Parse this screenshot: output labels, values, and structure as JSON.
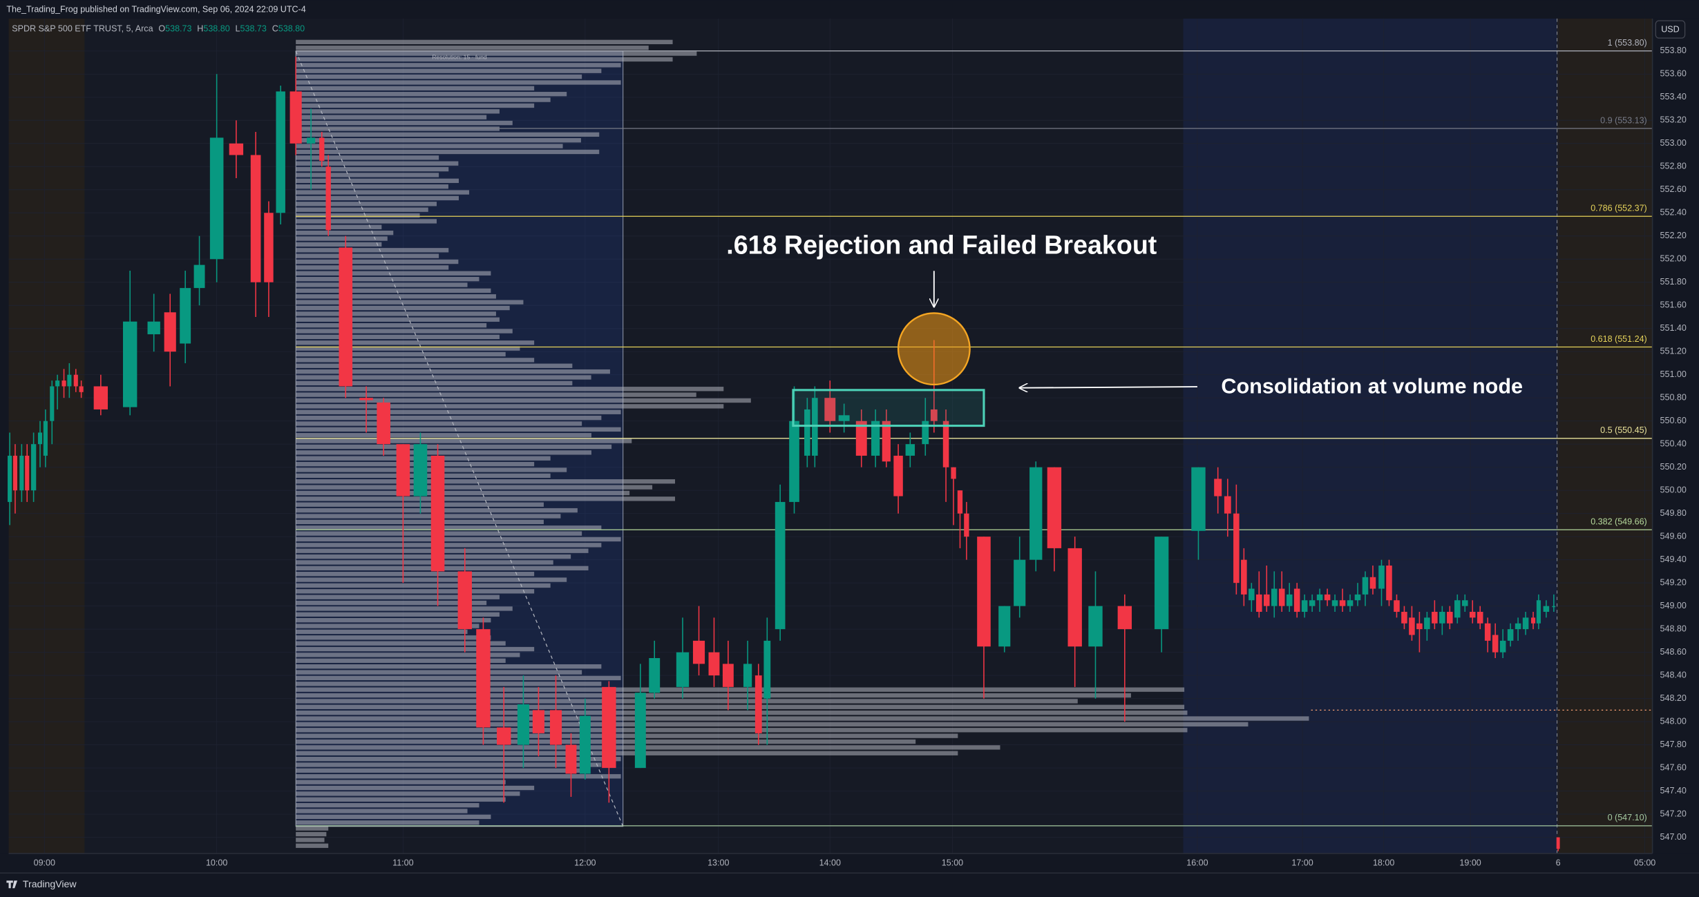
{
  "header": {
    "publisher": "The_Trading_Frog published on TradingView.com, Sep 06, 2024 22:09 UTC-4",
    "symbol": "SPDR S&P 500 ETF TRUST, 5, Arca",
    "ohlc": [
      {
        "label": "O",
        "value": "538.73"
      },
      {
        "label": "H",
        "value": "538.80"
      },
      {
        "label": "L",
        "value": "538.73"
      },
      {
        "label": "C",
        "value": "538.80"
      }
    ],
    "currency": "USD"
  },
  "footer": {
    "brand": "TradingView"
  },
  "chart_data": {
    "type": "candlestick",
    "x": [
      9,
      14,
      20,
      25,
      31,
      37,
      42,
      48,
      53,
      59,
      64,
      70,
      75,
      93,
      120,
      142,
      157,
      171,
      184,
      200,
      218,
      236,
      248,
      259,
      273,
      287,
      297,
      303,
      319,
      338,
      354,
      372,
      388,
      404,
      429,
      446,
      465,
      483,
      497,
      513,
      527,
      540,
      562,
      591,
      604,
      630,
      645,
      659,
      672,
      690,
      700,
      708,
      720,
      733,
      745,
      752,
      766,
      779,
      795,
      808,
      818,
      829,
      840,
      854,
      862,
      873,
      880,
      886,
      892,
      908,
      927,
      941,
      956,
      973,
      992,
      1011,
      1038,
      1072,
      1106,
      1124,
      1133,
      1141,
      1148,
      1155,
      1162,
      1169,
      1176,
      1183,
      1190,
      1197,
      1204,
      1211,
      1218,
      1225,
      1232,
      1239,
      1246,
      1253,
      1260,
      1267,
      1275,
      1282,
      1289,
      1296,
      1303,
      1310,
      1317,
      1324,
      1331,
      1338,
      1345,
      1352,
      1359,
      1366,
      1373,
      1380,
      1387,
      1394,
      1401,
      1408,
      1415,
      1420,
      1427,
      1434,
      1438
    ],
    "open": [
      549.9,
      550.3,
      550.0,
      550.3,
      550.0,
      550.4,
      550.3,
      550.6,
      550.9,
      550.95,
      550.9,
      551.0,
      550.9,
      550.9,
      550.72,
      551.35,
      551.54,
      551.27,
      551.75,
      552.0,
      553.0,
      552.9,
      552.4,
      552.4,
      553.45,
      553.0,
      553.05,
      552.8,
      552.1,
      550.8,
      550.76,
      550.4,
      549.95,
      550.3,
      549.3,
      548.8,
      547.95,
      547.8,
      548.1,
      548.1,
      547.8,
      547.55,
      548.3,
      547.6,
      548.25,
      548.3,
      548.7,
      548.6,
      548.5,
      548.3,
      548.4,
      548.2,
      548.8,
      549.9,
      550.3,
      550.3,
      550.8,
      550.6,
      550.6,
      550.3,
      550.6,
      550.3,
      550.3,
      550.4,
      550.7,
      550.6,
      550.2,
      550.0,
      549.8,
      549.6,
      548.65,
      549.0,
      549.4,
      550.2,
      549.5,
      548.65,
      549.0,
      548.8,
      549.65,
      550.1,
      549.95,
      549.8,
      549.4,
      549.05,
      549.1,
      549.1,
      549.0,
      549.15,
      549.0,
      549.15,
      548.95,
      549.0,
      549.05,
      549.1,
      549.0,
      549.05,
      549.0,
      549.05,
      549.1,
      549.25,
      549.15,
      549.35,
      549.05,
      548.95,
      548.9,
      548.85,
      548.8,
      548.95,
      548.85,
      548.95,
      548.9,
      549.0,
      548.95,
      548.95,
      548.85,
      548.75,
      548.6,
      548.7,
      548.8,
      548.8,
      548.9,
      548.85,
      548.95,
      549.0,
      547.0
    ],
    "high": [
      550.5,
      550.4,
      550.4,
      550.4,
      550.5,
      550.6,
      550.7,
      550.95,
      551.0,
      551.05,
      551.1,
      551.05,
      550.95,
      551.0,
      551.9,
      551.7,
      551.7,
      551.9,
      552.2,
      553.6,
      553.2,
      553.1,
      552.5,
      553.5,
      553.75,
      553.3,
      553.1,
      552.9,
      552.2,
      550.9,
      550.8,
      550.4,
      550.5,
      550.4,
      549.5,
      548.9,
      548.3,
      548.4,
      548.3,
      548.4,
      547.9,
      548.2,
      548.35,
      548.5,
      548.7,
      548.9,
      549.0,
      548.9,
      548.7,
      548.7,
      548.5,
      548.9,
      550.05,
      550.9,
      550.8,
      550.9,
      550.95,
      550.75,
      550.7,
      550.7,
      550.7,
      550.4,
      550.5,
      550.8,
      551.3,
      550.7,
      550.2,
      550.0,
      549.9,
      549.6,
      549.0,
      549.6,
      550.25,
      550.2,
      549.6,
      549.3,
      549.1,
      549.6,
      550.2,
      550.2,
      550.1,
      550.05,
      549.5,
      549.2,
      549.3,
      549.35,
      549.3,
      549.3,
      549.2,
      549.2,
      549.1,
      549.1,
      549.15,
      549.15,
      549.1,
      549.15,
      549.1,
      549.2,
      549.3,
      549.35,
      549.4,
      549.4,
      549.1,
      549.0,
      549.0,
      548.95,
      548.95,
      549.05,
      549.0,
      549.0,
      549.1,
      549.1,
      549.05,
      549.0,
      548.9,
      548.85,
      548.8,
      548.85,
      548.9,
      548.95,
      548.95,
      549.1,
      549.05,
      549.1,
      547.0
    ],
    "low": [
      549.7,
      549.8,
      549.9,
      549.9,
      549.9,
      550.2,
      550.2,
      550.4,
      550.7,
      550.8,
      550.8,
      550.85,
      550.8,
      550.65,
      550.65,
      551.2,
      550.9,
      551.1,
      551.6,
      551.8,
      552.7,
      551.5,
      551.5,
      552.3,
      552.9,
      552.6,
      552.8,
      552.2,
      550.8,
      550.5,
      550.3,
      549.2,
      549.8,
      549.0,
      548.6,
      547.8,
      547.3,
      547.6,
      547.7,
      547.6,
      547.35,
      547.5,
      547.3,
      547.6,
      548.2,
      548.2,
      548.4,
      548.3,
      548.1,
      548.1,
      547.8,
      547.8,
      548.7,
      549.8,
      550.2,
      550.2,
      550.5,
      550.5,
      550.2,
      550.2,
      550.2,
      549.8,
      550.2,
      550.3,
      550.5,
      549.9,
      549.7,
      549.5,
      549.4,
      548.2,
      548.6,
      548.9,
      549.3,
      549.3,
      548.3,
      548.2,
      548.0,
      548.6,
      549.4,
      549.8,
      549.6,
      549.1,
      549.0,
      548.95,
      548.9,
      548.95,
      548.9,
      548.95,
      548.95,
      548.9,
      548.9,
      548.95,
      548.95,
      549.0,
      548.95,
      548.95,
      548.95,
      549.0,
      549.0,
      549.1,
      549.0,
      549.0,
      548.9,
      548.8,
      548.7,
      548.6,
      548.7,
      548.8,
      548.75,
      548.8,
      548.85,
      548.95,
      548.85,
      548.8,
      548.6,
      548.55,
      548.55,
      548.65,
      548.7,
      548.75,
      548.8,
      548.8,
      548.9,
      548.95,
      546.88
    ],
    "close": [
      550.3,
      550.0,
      550.3,
      550.0,
      550.4,
      550.5,
      550.6,
      550.9,
      550.95,
      550.9,
      551.0,
      550.9,
      550.85,
      550.7,
      551.46,
      551.46,
      551.2,
      551.75,
      551.95,
      553.05,
      552.9,
      551.8,
      551.8,
      553.45,
      553.0,
      553.05,
      552.85,
      552.25,
      550.9,
      550.78,
      550.4,
      549.95,
      550.4,
      549.3,
      548.8,
      547.95,
      547.8,
      548.15,
      547.9,
      547.8,
      547.55,
      548.05,
      547.6,
      548.25,
      548.55,
      548.6,
      548.5,
      548.4,
      548.3,
      548.5,
      547.9,
      548.7,
      549.9,
      550.6,
      550.7,
      550.8,
      550.6,
      550.65,
      550.3,
      550.6,
      550.25,
      549.95,
      550.4,
      550.6,
      550.6,
      550.2,
      550.1,
      549.8,
      549.6,
      548.65,
      549.0,
      549.4,
      550.2,
      549.5,
      548.65,
      549.0,
      548.8,
      549.6,
      550.2,
      549.95,
      549.8,
      549.2,
      549.1,
      549.15,
      548.95,
      549.0,
      549.15,
      549.0,
      549.1,
      548.95,
      549.05,
      549.05,
      549.1,
      549.05,
      549.05,
      549.0,
      549.05,
      549.1,
      549.25,
      549.15,
      549.35,
      549.05,
      548.95,
      548.85,
      548.75,
      548.8,
      548.9,
      548.85,
      548.95,
      548.85,
      549.05,
      549.05,
      548.9,
      548.85,
      548.7,
      548.6,
      548.7,
      548.8,
      548.85,
      548.9,
      548.85,
      549.05,
      549.0,
      549.0,
      546.9
    ],
    "up_color": "#089981",
    "down_color": "#f23645",
    "xlim": [
      8,
      1525
    ],
    "xticks": [
      {
        "value": 41,
        "label": "09:00"
      },
      {
        "value": 200,
        "label": "10:00"
      },
      {
        "value": 372,
        "label": "11:00"
      },
      {
        "value": 540,
        "label": "12:00"
      },
      {
        "value": 663,
        "label": "13:00"
      },
      {
        "value": 766,
        "label": "14:00"
      },
      {
        "value": 879,
        "label": "15:00"
      },
      {
        "value": 1105,
        "label": "16:00"
      },
      {
        "value": 1202,
        "label": "17:00"
      },
      {
        "value": 1277,
        "label": "18:00"
      },
      {
        "value": 1357,
        "label": "19:00"
      },
      {
        "value": 1438,
        "label": "6"
      },
      {
        "value": 1518,
        "label": "05:00"
      }
    ],
    "ylim": [
      546.86,
      554.08
    ],
    "yticks": [
      {
        "value": 547.0,
        "label": "547.00"
      },
      {
        "value": 547.2,
        "label": "547.20"
      },
      {
        "value": 547.4,
        "label": "547.40"
      },
      {
        "value": 547.6,
        "label": "547.60"
      },
      {
        "value": 547.8,
        "label": "547.80"
      },
      {
        "value": 548.0,
        "label": "548.00"
      },
      {
        "value": 548.2,
        "label": "548.20"
      },
      {
        "value": 548.4,
        "label": "548.40"
      },
      {
        "value": 548.6,
        "label": "548.60"
      },
      {
        "value": 548.8,
        "label": "548.80"
      },
      {
        "value": 549.0,
        "label": "549.00"
      },
      {
        "value": 549.2,
        "label": "549.20"
      },
      {
        "value": 549.4,
        "label": "549.40"
      },
      {
        "value": 549.6,
        "label": "549.60"
      },
      {
        "value": 549.8,
        "label": "549.80"
      },
      {
        "value": 550.0,
        "label": "550.00"
      },
      {
        "value": 550.2,
        "label": "550.20"
      },
      {
        "value": 550.4,
        "label": "550.40"
      },
      {
        "value": 550.6,
        "label": "550.60"
      },
      {
        "value": 550.8,
        "label": "550.80"
      },
      {
        "value": 551.0,
        "label": "551.00"
      },
      {
        "value": 551.2,
        "label": "551.20"
      },
      {
        "value": 551.4,
        "label": "551.40"
      },
      {
        "value": 551.6,
        "label": "551.60"
      },
      {
        "value": 551.8,
        "label": "551.80"
      },
      {
        "value": 552.0,
        "label": "552.00"
      },
      {
        "value": 552.2,
        "label": "552.20"
      },
      {
        "value": 552.4,
        "label": "552.40"
      },
      {
        "value": 552.6,
        "label": "552.60"
      },
      {
        "value": 552.8,
        "label": "552.80"
      },
      {
        "value": 553.0,
        "label": "553.00"
      },
      {
        "value": 553.2,
        "label": "553.20"
      },
      {
        "value": 553.4,
        "label": "553.40"
      },
      {
        "value": 553.6,
        "label": "553.60"
      },
      {
        "value": 553.8,
        "label": "553.80"
      }
    ],
    "grid": true,
    "fib_levels": [
      {
        "value": 553.8,
        "label": "1 (553.80)",
        "color": "#b2b5be"
      },
      {
        "value": 553.13,
        "label": "0.9 (553.13)",
        "color": "#787b86"
      },
      {
        "value": 552.37,
        "label": "0.786 (552.37)",
        "color": "#e6d35a"
      },
      {
        "value": 551.24,
        "label": "0.618 (551.24)",
        "color": "#e6d35a"
      },
      {
        "value": 550.45,
        "label": "0.5 (550.45)",
        "color": "#e9e29a"
      },
      {
        "value": 549.66,
        "label": "0.382 (549.66)",
        "color": "#b5d99c"
      },
      {
        "value": 547.1,
        "label": "0 (547.10)",
        "color": "#a5c9a0"
      }
    ],
    "volume_profile": {
      "label": "Resolution: 15 · fund",
      "prices": [
        547.0,
        547.2,
        547.4,
        547.6,
        547.8,
        548.0,
        548.2,
        548.4,
        548.6,
        548.8,
        549.0,
        549.2,
        549.4,
        549.6,
        549.8,
        550.0,
        550.2,
        550.4,
        550.6,
        550.8,
        551.0,
        551.2,
        551.4,
        551.6,
        551.8,
        552.0,
        552.2,
        552.4,
        552.6,
        552.8,
        553.0,
        553.2,
        553.4,
        553.6,
        553.8
      ],
      "values": [
        30,
        180,
        220,
        300,
        650,
        935,
        820,
        300,
        220,
        180,
        200,
        250,
        270,
        300,
        260,
        350,
        250,
        310,
        300,
        420,
        290,
        220,
        200,
        210,
        180,
        150,
        90,
        130,
        160,
        150,
        280,
        200,
        250,
        300,
        370
      ],
      "poc": 548.1
    },
    "annotations": [
      ".618 Rejection and Failed Breakout",
      "Consolidation at volume node"
    ]
  }
}
